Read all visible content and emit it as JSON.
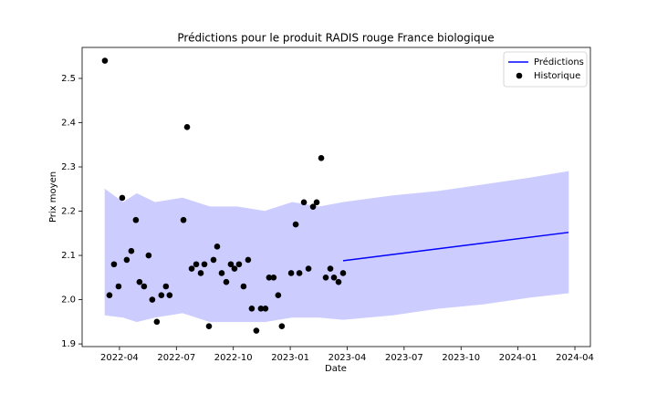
{
  "chart_data": {
    "type": "line",
    "title": "Prédictions pour le produit RADIS rouge France biologique",
    "x_label": "Date",
    "y_label": "Prix moyen",
    "xlim": [
      2022.086,
      2024.318
    ],
    "ylim": [
      1.894,
      2.57
    ],
    "xticks": [
      {
        "value": 2022.25,
        "label": "2022-04"
      },
      {
        "value": 2022.5,
        "label": "2022-07"
      },
      {
        "value": 2022.75,
        "label": "2022-10"
      },
      {
        "value": 2023.0,
        "label": "2023-01"
      },
      {
        "value": 2023.25,
        "label": "2023-04"
      },
      {
        "value": 2023.5,
        "label": "2023-07"
      },
      {
        "value": 2023.75,
        "label": "2023-10"
      },
      {
        "value": 2024.0,
        "label": "2024-01"
      },
      {
        "value": 2024.25,
        "label": "2024-04"
      }
    ],
    "yticks": [
      1.9,
      {
        "value": 2,
        "label": "2.0"
      },
      2.1,
      2.2,
      2.3,
      2.4,
      2.5
    ],
    "grid": false,
    "legend": "upper right",
    "series": [
      {
        "kind": "band",
        "color": "#ccccff",
        "x": [
          2022.186,
          2022.266,
          2022.326,
          2022.406,
          2022.527,
          2022.647,
          2022.767,
          2022.888,
          2023.008,
          2023.128,
          2023.232,
          2023.449,
          2023.649,
          2023.85,
          2024.05,
          2024.222
        ],
        "lower": [
          1.965,
          1.96,
          1.95,
          1.96,
          1.97,
          1.95,
          1.95,
          1.95,
          1.96,
          1.96,
          1.955,
          1.965,
          1.98,
          1.99,
          2.005,
          2.015
        ],
        "upper": [
          2.25,
          2.22,
          2.24,
          2.22,
          2.23,
          2.21,
          2.21,
          2.2,
          2.22,
          2.21,
          2.22,
          2.235,
          2.245,
          2.26,
          2.275,
          2.29
        ]
      },
      {
        "kind": "line",
        "name": "Prédictions",
        "color": "#0000ff",
        "x": [
          2023.232,
          2024.222
        ],
        "values": [
          2.088,
          2.152
        ]
      },
      {
        "kind": "scatter",
        "name": "Historique",
        "color": "#000000",
        "x": [
          2022.186,
          2022.206,
          2022.226,
          2022.246,
          2022.262,
          2022.282,
          2022.302,
          2022.322,
          2022.338,
          2022.358,
          2022.378,
          2022.394,
          2022.414,
          2022.434,
          2022.454,
          2022.47,
          2022.531,
          2022.547,
          2022.567,
          2022.587,
          2022.607,
          2022.623,
          2022.643,
          2022.663,
          2022.679,
          2022.699,
          2022.719,
          2022.739,
          2022.755,
          2022.775,
          2022.795,
          2022.815,
          2022.831,
          2022.851,
          2022.871,
          2022.891,
          2022.907,
          2022.927,
          2022.947,
          2022.963,
          2023.004,
          2023.024,
          2023.04,
          2023.06,
          2023.08,
          2023.1,
          2023.116,
          2023.136,
          2023.156,
          2023.176,
          2023.192,
          2023.212,
          2023.232
        ],
        "values": [
          2.54,
          2.01,
          2.08,
          2.03,
          2.23,
          2.09,
          2.11,
          2.18,
          2.04,
          2.03,
          2.1,
          2.0,
          1.95,
          2.01,
          2.03,
          2.01,
          2.18,
          2.39,
          2.07,
          2.08,
          2.06,
          2.08,
          1.94,
          2.09,
          2.12,
          2.06,
          2.04,
          2.08,
          2.07,
          2.08,
          2.03,
          2.09,
          1.98,
          1.93,
          1.98,
          1.98,
          2.05,
          2.05,
          2.01,
          1.94,
          2.06,
          2.17,
          2.06,
          2.22,
          2.07,
          2.21,
          2.22,
          2.32,
          2.05,
          2.07,
          2.05,
          2.04,
          2.06
        ]
      }
    ]
  }
}
